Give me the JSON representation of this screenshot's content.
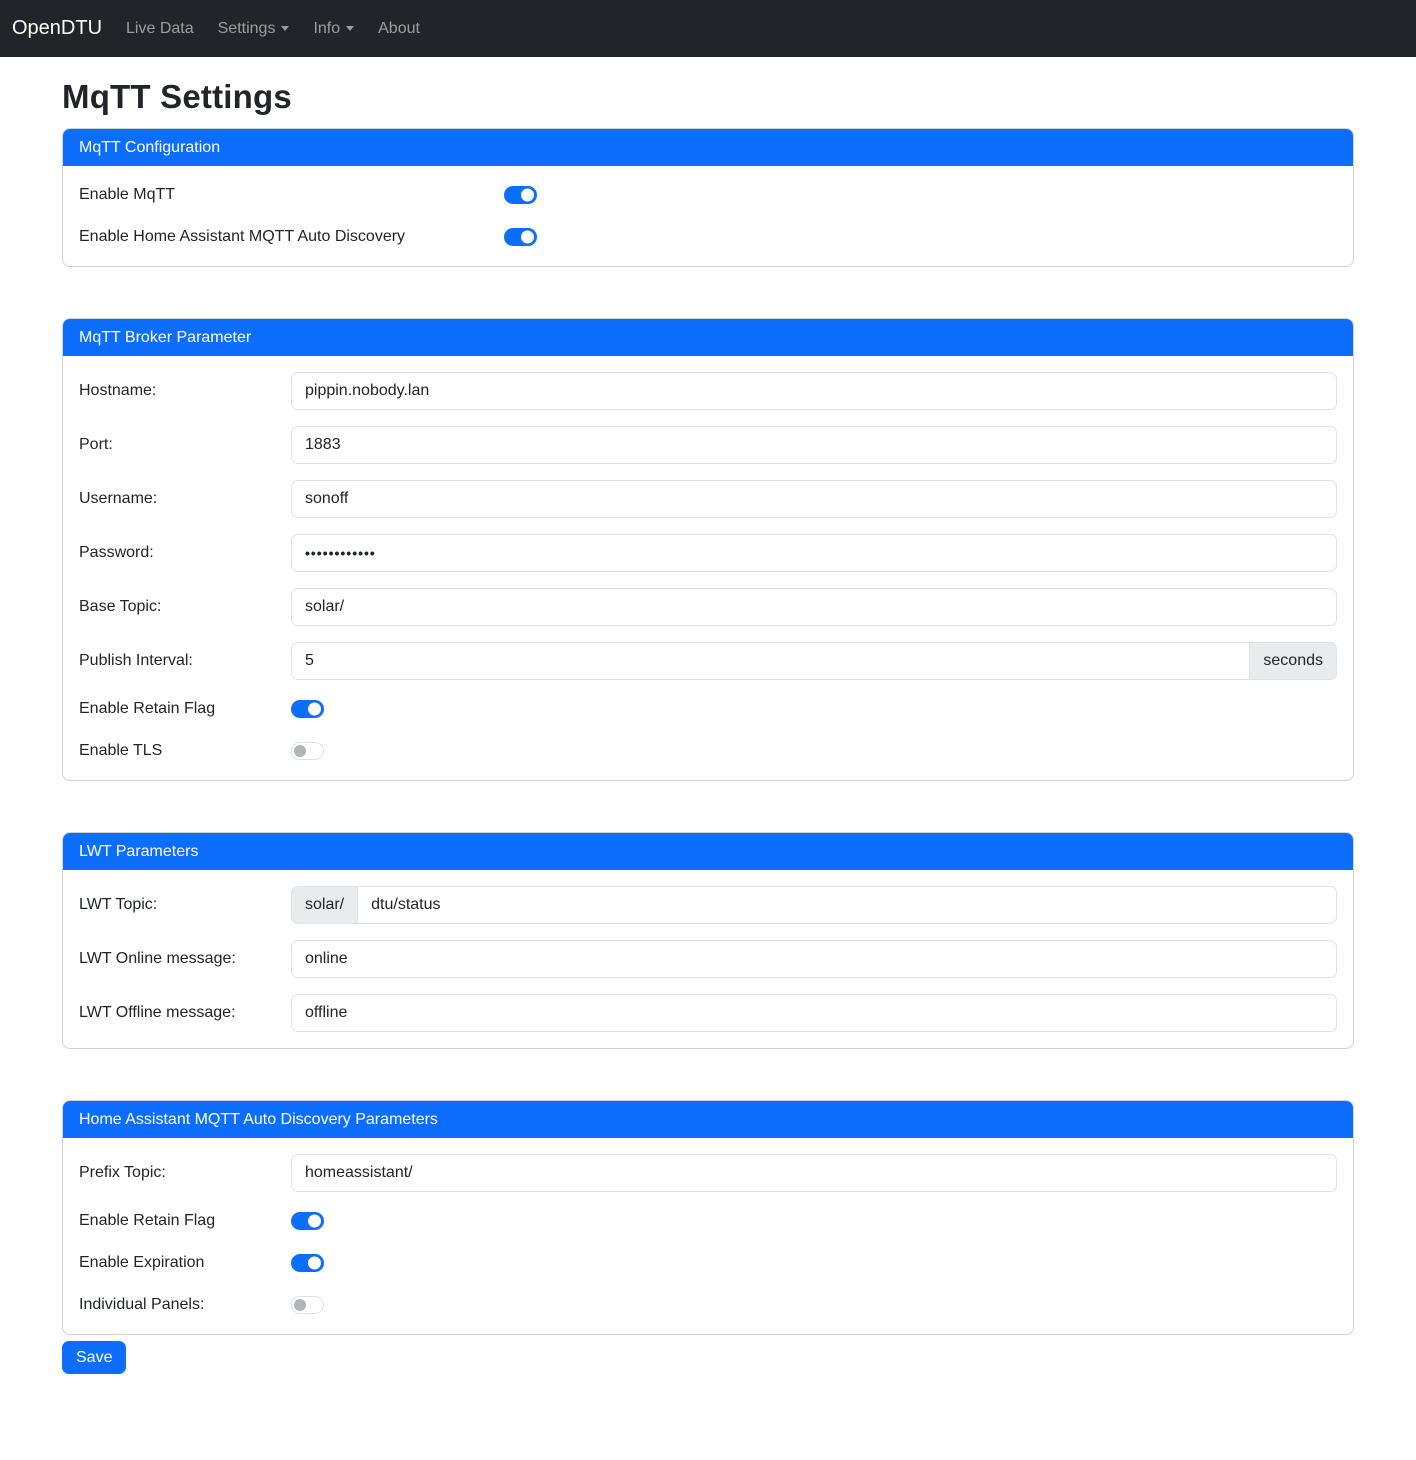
{
  "navbar": {
    "brand": "OpenDTU",
    "items": [
      {
        "label": "Live Data",
        "caret": false
      },
      {
        "label": "Settings",
        "caret": true
      },
      {
        "label": "Info",
        "caret": true
      },
      {
        "label": "About",
        "caret": false
      }
    ]
  },
  "page": {
    "title": "MqTT Settings"
  },
  "cards": [
    {
      "title": "MqTT Configuration",
      "rows": [
        {
          "label": "Enable MqTT",
          "control": "switch",
          "state": "on"
        },
        {
          "label": "Enable Home Assistant MQTT Auto Discovery",
          "control": "switch",
          "state": "on"
        }
      ]
    },
    {
      "title": "MqTT Broker Parameter",
      "rows": [
        {
          "label": "Hostname:",
          "control": "text",
          "value": "pippin.nobody.lan"
        },
        {
          "label": "Port:",
          "control": "text",
          "value": "1883"
        },
        {
          "label": "Username:",
          "control": "text",
          "value": "sonoff"
        },
        {
          "label": "Password:",
          "control": "password",
          "value": "••••••••••••"
        },
        {
          "label": "Base Topic:",
          "control": "text",
          "value": "solar/"
        },
        {
          "label": "Publish Interval:",
          "control": "text",
          "value": "5",
          "suffix": "seconds"
        },
        {
          "label": "Enable Retain Flag",
          "control": "switch",
          "state": "on"
        },
        {
          "label": "Enable TLS",
          "control": "switch",
          "state": "off"
        }
      ]
    },
    {
      "title": "LWT Parameters",
      "rows": [
        {
          "label": "LWT Topic:",
          "control": "text",
          "prefix": "solar/",
          "value": "dtu/status"
        },
        {
          "label": "LWT Online message:",
          "control": "text",
          "value": "online"
        },
        {
          "label": "LWT Offline message:",
          "control": "text",
          "value": "offline"
        }
      ]
    },
    {
      "title": "Home Assistant MQTT Auto Discovery Parameters",
      "rows": [
        {
          "label": "Prefix Topic:",
          "control": "text",
          "value": "homeassistant/"
        },
        {
          "label": "Enable Retain Flag",
          "control": "switch",
          "state": "on"
        },
        {
          "label": "Enable Expiration",
          "control": "switch",
          "state": "on"
        },
        {
          "label": "Individual Panels:",
          "control": "switch",
          "state": "off"
        }
      ]
    }
  ],
  "save_button": "Save",
  "colors": {
    "primary": "#0d6efd",
    "navbar_bg": "#212529"
  }
}
